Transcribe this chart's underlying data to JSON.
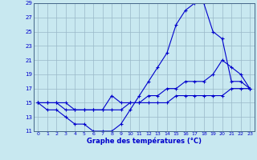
{
  "background_color": "#c8e8f0",
  "grid_color": "#9ab8c8",
  "line_color": "#0000cc",
  "xlabel": "Graphe des températures (°C)",
  "xlim_min": 0,
  "xlim_max": 23,
  "ylim_min": 11,
  "ylim_max": 29,
  "xticks": [
    0,
    1,
    2,
    3,
    4,
    5,
    6,
    7,
    8,
    9,
    10,
    11,
    12,
    13,
    14,
    15,
    16,
    17,
    18,
    19,
    20,
    21,
    22,
    23
  ],
  "yticks": [
    11,
    13,
    15,
    17,
    19,
    21,
    23,
    25,
    27,
    29
  ],
  "curve1_y": [
    15,
    14,
    14,
    13,
    12,
    12,
    11,
    11,
    11,
    12,
    14,
    16,
    18,
    20,
    22,
    26,
    28,
    29,
    29,
    25,
    24,
    18,
    18,
    17
  ],
  "curve2_y": [
    15,
    15,
    15,
    15,
    14,
    14,
    14,
    14,
    14,
    14,
    15,
    15,
    15,
    15,
    15,
    16,
    16,
    16,
    16,
    16,
    16,
    17,
    17,
    17
  ],
  "curve3_y": [
    15,
    15,
    15,
    14,
    14,
    14,
    14,
    14,
    16,
    15,
    15,
    15,
    16,
    16,
    17,
    17,
    18,
    18,
    18,
    19,
    21,
    20,
    19,
    17
  ]
}
